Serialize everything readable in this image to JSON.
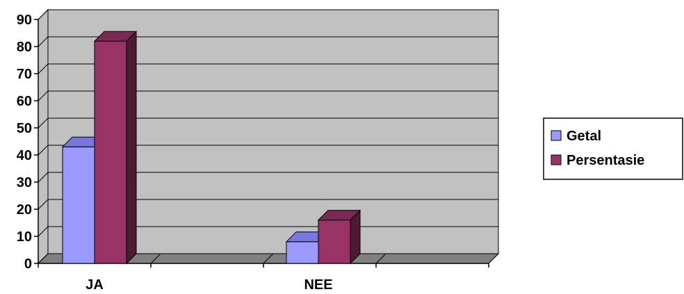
{
  "chart_data": {
    "type": "bar",
    "style": "3d-clustered-column",
    "categories": [
      "JA",
      "NEE"
    ],
    "series": [
      {
        "name": "Getal",
        "values": [
          43,
          8
        ],
        "color": "#9999ff",
        "top_color": "#7777dd",
        "side_color": "#6b6bb3"
      },
      {
        "name": "Persentasie",
        "values": [
          82,
          16
        ],
        "color": "#993366",
        "top_color": "#7a2952",
        "side_color": "#4d1a33"
      }
    ],
    "ylim": [
      0,
      90
    ],
    "yticks": [
      "0",
      "10",
      "20",
      "30",
      "40",
      "50",
      "60",
      "70",
      "80",
      "90"
    ],
    "title": "",
    "xlabel": "",
    "ylabel": "",
    "grid": true,
    "legend_position": "right",
    "wall_color": "#c0c0c0",
    "floor_color": "#808080"
  }
}
